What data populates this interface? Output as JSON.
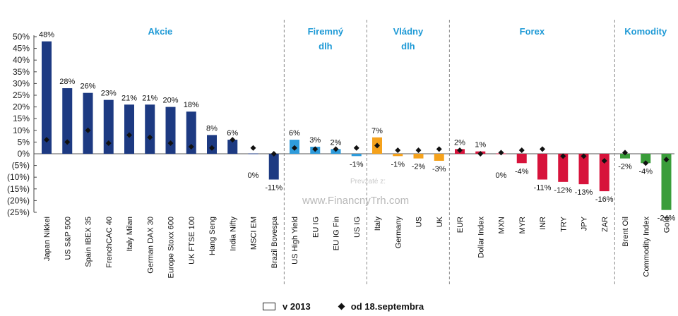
{
  "chart_data": {
    "type": "bar",
    "ylim": [
      -25,
      50
    ],
    "yticks": [
      "50%",
      "45%",
      "40%",
      "35%",
      "30%",
      "25%",
      "20%",
      "15%",
      "10%",
      "5%",
      "0%",
      "(5%)",
      "(10%)",
      "(15%)",
      "(20%)",
      "(25%)"
    ],
    "ytick_values": [
      50,
      45,
      40,
      35,
      30,
      25,
      20,
      15,
      10,
      5,
      0,
      -5,
      -10,
      -15,
      -20,
      -25
    ],
    "groups": [
      {
        "label_lines": [
          "Akcie"
        ],
        "color": "#1d3a82"
      },
      {
        "label_lines": [
          "Firemný",
          "dlh"
        ],
        "color": "#2e9bdb"
      },
      {
        "label_lines": [
          "Vládny",
          "dlh"
        ],
        "color": "#f5a21c"
      },
      {
        "label_lines": [
          "Forex"
        ],
        "color": "#d7133b"
      },
      {
        "label_lines": [
          "Komodity"
        ],
        "color": "#3a9d3a"
      }
    ],
    "group_label_color": "#1f9ad6",
    "categories": [
      "Japan Nikkei",
      "US S&P 500",
      "Spain IBEX 35",
      "FrenchCAC 40",
      "Italy Milan",
      "German DAX 30",
      "Europe Stoxx 600",
      "UK FTSE 100",
      "Hang Seng",
      "India Nifty",
      "MSCI EM",
      "Brazil Bovespa",
      "US High Yield",
      "EU IG",
      "EU IG Fin",
      "US IG",
      "Italy",
      "Germany",
      "US",
      "UK",
      "EUR",
      "Dollar Index",
      "MXN",
      "MYR",
      "INR",
      "TRY",
      "JPY",
      "ZAR",
      "Brent Oil",
      "Commodity Index",
      "Gold"
    ],
    "group_index": [
      0,
      0,
      0,
      0,
      0,
      0,
      0,
      0,
      0,
      0,
      0,
      0,
      1,
      1,
      1,
      1,
      2,
      2,
      2,
      2,
      3,
      3,
      3,
      3,
      3,
      3,
      3,
      3,
      4,
      4,
      4
    ],
    "series": [
      {
        "name": "v 2013",
        "values": [
          48,
          28,
          26,
          23,
          21,
          21,
          20,
          18,
          8,
          6,
          0,
          -11,
          6,
          3,
          2,
          -1,
          7,
          -1,
          -2,
          -3,
          2,
          1,
          0,
          -4,
          -11,
          -12,
          -13,
          -16,
          -2,
          -4,
          -24
        ]
      },
      {
        "name": "od 18.septembra",
        "values": [
          6,
          5,
          10,
          4.5,
          8,
          7,
          4.5,
          3,
          2.5,
          6,
          2.5,
          0,
          2.5,
          2,
          2,
          2.5,
          3.5,
          1.5,
          1.5,
          2,
          1.5,
          0,
          0.5,
          1.5,
          2,
          -1,
          -1,
          -3,
          0.5,
          -4,
          -2.5
        ]
      }
    ],
    "value_labels": [
      "48%",
      "28%",
      "26%",
      "23%",
      "21%",
      "21%",
      "20%",
      "18%",
      "8%",
      "6%",
      "0%",
      "-11%",
      "6%",
      "3%",
      "2%",
      "-1%",
      "7%",
      "-1%",
      "-2%",
      "-3%",
      "2%",
      "1%",
      "0%",
      "-4%",
      "-11%",
      "-12%",
      "-13%",
      "-16%",
      "-2%",
      "-4%",
      "-24%"
    ]
  },
  "watermark": {
    "main": "www.FinancnyTrh.com",
    "prefix": "Prevzaté z:"
  },
  "legend": {
    "bar_label": "v 2013",
    "marker_label": "od 18.septembra"
  }
}
